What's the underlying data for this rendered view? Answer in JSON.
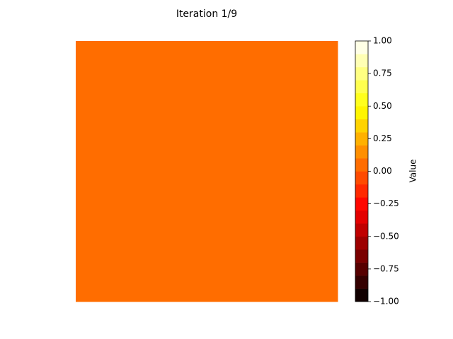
{
  "chart_data": {
    "type": "heatmap",
    "title": "Iteration 1/9",
    "values": [
      [
        0
      ]
    ],
    "colormap": "hot",
    "levels": 20,
    "colorbar_label": "Value",
    "clim": [
      -1,
      1
    ],
    "cticks": [
      {
        "value": -1,
        "label": "−1.00"
      },
      {
        "value": -0.75,
        "label": "−0.75"
      },
      {
        "value": -0.5,
        "label": "−0.50"
      },
      {
        "value": -0.25,
        "label": "−0.25"
      },
      {
        "value": 0,
        "label": "0.00"
      },
      {
        "value": 0.25,
        "label": "0.25"
      },
      {
        "value": 0.5,
        "label": "0.50"
      },
      {
        "value": 0.75,
        "label": "0.75"
      },
      {
        "value": 1,
        "label": "1.00"
      }
    ]
  }
}
